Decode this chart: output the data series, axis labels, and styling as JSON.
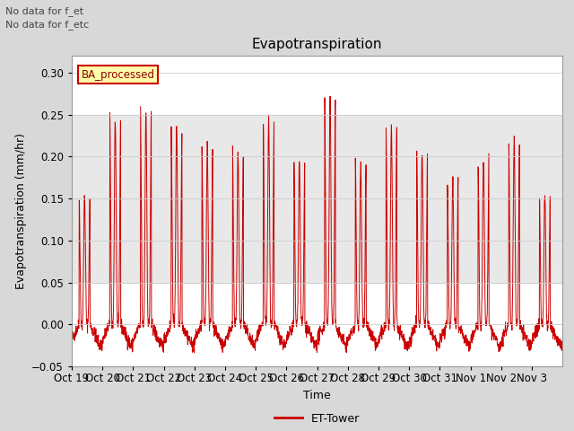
{
  "title": "Evapotranspiration",
  "ylabel": "Evapotranspiration (mm/hr)",
  "xlabel": "Time",
  "ylim": [
    -0.05,
    0.32
  ],
  "yticks": [
    -0.05,
    0.0,
    0.05,
    0.1,
    0.15,
    0.2,
    0.25,
    0.3
  ],
  "line_color": "#cc0000",
  "bg_color": "#d8d8d8",
  "plot_bg_color": "#ffffff",
  "inner_bg_color": "#e8e8e8",
  "annotations": [
    "No data for f_et",
    "No data for f_etc"
  ],
  "legend_box_label": "BA_processed",
  "legend_line_label": "ET-Tower",
  "x_tick_labels": [
    "Oct 19",
    "Oct 20",
    "Oct 21",
    "Oct 22",
    "Oct 23",
    "Oct 24",
    "Oct 25",
    "Oct 26",
    "Oct 27",
    "Oct 28",
    "Oct 29",
    "Oct 30",
    "Oct 31",
    "Nov 1",
    "Nov 2",
    "Nov 3"
  ],
  "num_days": 16,
  "peak_values": [
    0.155,
    0.245,
    0.255,
    0.236,
    0.215,
    0.205,
    0.245,
    0.196,
    0.275,
    0.196,
    0.235,
    0.205,
    0.175,
    0.195,
    0.222,
    0.155
  ],
  "night_min": -0.025,
  "shaded_band_low": 0.05,
  "shaded_band_high": 0.25
}
